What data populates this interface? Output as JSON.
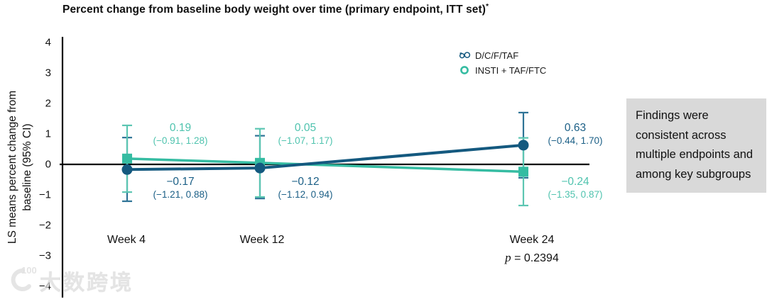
{
  "page": {
    "title": "Percent change from baseline body weight over time (primary endpoint, ITT set)",
    "title_superscript": "*"
  },
  "legend": {
    "items": [
      {
        "label": "D/C/F/TAF",
        "color": "#14597F",
        "marker": "squiggle"
      },
      {
        "label": "INSTI + TAF/FTC",
        "color": "#35BCA2",
        "marker": "ring"
      }
    ]
  },
  "chart_data": {
    "type": "line",
    "title": "Percent change from baseline body weight over time (primary endpoint, ITT set)*",
    "ylabel": "LS means percent change from baseline (95% CI)",
    "ylabel_lines": [
      "LS means percent change from",
      "baseline (95% CI)"
    ],
    "ylim": [
      -4,
      4
    ],
    "yticks": [
      4,
      3,
      2,
      1,
      0,
      -1,
      -2,
      -3,
      -4
    ],
    "ytick_labels": [
      "4",
      "3",
      "2",
      "1",
      "0",
      "−1",
      "−2",
      "−3",
      "−4"
    ],
    "categories": [
      "Week 4",
      "Week 12",
      "Week 24"
    ],
    "zero_reference_line": true,
    "legend_position": "top-right",
    "p_symbol": "p",
    "p_rest": "= 0.2394",
    "p_value": 0.2394,
    "series": [
      {
        "name": "D/C/F/TAF",
        "color": "#14597F",
        "whisker_color": "#2E7396",
        "text_color": "#1B5F86",
        "marker": "circle",
        "values": [
          -0.17,
          -0.12,
          0.63
        ],
        "ci": [
          [
            -1.21,
            0.88
          ],
          [
            -1.12,
            0.94
          ],
          [
            -0.44,
            1.7
          ]
        ],
        "value_labels": [
          "−0.17",
          "−0.12",
          "0.63"
        ],
        "ci_labels": [
          "(−1.21, 0.88)",
          "(−1.12, 0.94)",
          "(−0.44, 1.70)"
        ]
      },
      {
        "name": "INSTI + TAF/FTC",
        "color": "#35BCA2",
        "whisker_color": "#5CC6B2",
        "text_color": "#4FC3AE",
        "marker": "square",
        "values": [
          0.19,
          0.05,
          -0.24
        ],
        "ci": [
          [
            -0.91,
            1.28
          ],
          [
            -1.07,
            1.17
          ],
          [
            -1.35,
            0.87
          ]
        ],
        "value_labels": [
          "0.19",
          "0.05",
          "−0.24"
        ],
        "ci_labels": [
          "(−0.91, 1.28)",
          "(−1.07, 1.17)",
          "(−1.35, 0.87)"
        ]
      }
    ]
  },
  "callout": {
    "text": "Findings were consistent across multiple endpoints and among key subgroups",
    "bg_color": "#d9d9d9"
  },
  "watermark": {
    "text": "大数跨境"
  }
}
